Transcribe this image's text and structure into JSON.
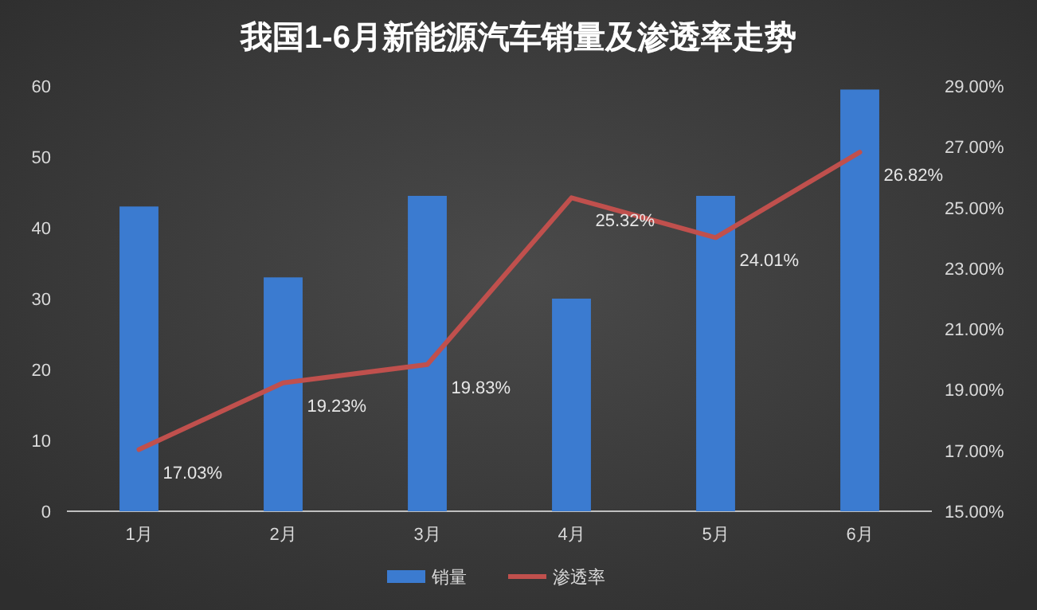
{
  "chart_data": {
    "type": "bar",
    "title": "我国1-6月新能源汽车销量及渗透率走势",
    "categories": [
      "1月",
      "2月",
      "3月",
      "4月",
      "5月",
      "6月"
    ],
    "series": [
      {
        "name": "销量",
        "color": "#3b7bd0",
        "values": [
          43,
          33,
          44.5,
          30,
          44.5,
          59.5
        ]
      },
      {
        "name": "渗透率",
        "type": "line",
        "axis": "y2",
        "color": "#c0504d",
        "values": [
          17.03,
          19.23,
          19.83,
          25.32,
          24.01,
          26.82
        ],
        "value_labels": [
          "17.03%",
          "19.23%",
          "19.83%",
          "25.32%",
          "24.01%",
          "26.82%"
        ]
      }
    ],
    "ylim": [
      0,
      60
    ],
    "yticks": [
      0,
      10,
      20,
      30,
      40,
      50,
      60
    ],
    "y2lim": [
      15,
      29
    ],
    "y2ticks": [
      {
        "value": 15,
        "label": "15.00%"
      },
      {
        "value": 17,
        "label": "17.00%"
      },
      {
        "value": 19,
        "label": "19.00%"
      },
      {
        "value": 21,
        "label": "21.00%"
      },
      {
        "value": 23,
        "label": "23.00%"
      },
      {
        "value": 25,
        "label": "25.00%"
      },
      {
        "value": 27,
        "label": "27.00%"
      },
      {
        "value": 29,
        "label": "29.00%"
      }
    ],
    "legend": "bottom"
  }
}
